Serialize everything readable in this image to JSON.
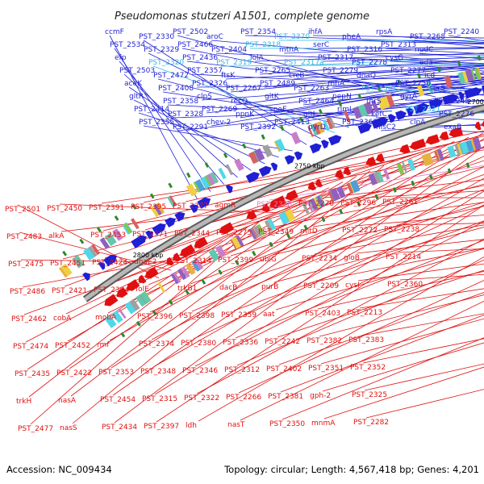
{
  "title": "Pseudomonas stutzeri A1501, complete genome",
  "footer": {
    "accession": "Accession: NC_009434",
    "summary": "Topology: circular; Length: 4,567,418 bp; Genes: 4,201"
  },
  "colors": {
    "forward": "#1f1fd6",
    "reverse": "#e01010",
    "highlight_cyan": "#33b8e6",
    "highlight_pink": "#e878c8",
    "backbone": "#8c8c8c",
    "marker": "#2a8a2a"
  },
  "scale_labels": [
    "2800 kbp",
    "2750 kbp",
    "2700 kbp",
    "2650 kbp",
    "2600 kbp",
    "2550 kbp",
    "2500 kbp",
    "2450 kbp"
  ],
  "forward_labels": [
    {
      "text": "ccmF",
      "color": "forward"
    },
    {
      "text": "PST_2534",
      "color": "forward"
    },
    {
      "text": "efp",
      "color": "forward"
    },
    {
      "text": "PST_2503",
      "color": "forward"
    },
    {
      "text": "aceK",
      "color": "forward"
    },
    {
      "text": "gltR",
      "color": "forward"
    },
    {
      "text": "PST_2414",
      "color": "forward"
    },
    {
      "text": "PST_2355",
      "color": "forward"
    },
    {
      "text": "PST_2330",
      "color": "forward"
    },
    {
      "text": "PST_2329",
      "color": "forward"
    },
    {
      "text": "PST_2320",
      "color": "highlight_cyan"
    },
    {
      "text": "PST_2472",
      "color": "forward"
    },
    {
      "text": "PST_2408",
      "color": "forward"
    },
    {
      "text": "PST_2358",
      "color": "forward"
    },
    {
      "text": "PST_2328",
      "color": "forward"
    },
    {
      "text": "PST_2291",
      "color": "forward"
    },
    {
      "text": "PST_2502",
      "color": "forward"
    },
    {
      "text": "PST_2466",
      "color": "forward"
    },
    {
      "text": "PST_2436",
      "color": "forward"
    },
    {
      "text": "PST_2357",
      "color": "forward"
    },
    {
      "text": "PST_2326",
      "color": "forward"
    },
    {
      "text": "clpS",
      "color": "forward"
    },
    {
      "text": "PST_2269",
      "color": "forward"
    },
    {
      "text": "chev-2",
      "color": "forward"
    },
    {
      "text": "aroC",
      "color": "forward"
    },
    {
      "text": "PST_2404",
      "color": "forward"
    },
    {
      "text": "PST_2319",
      "color": "highlight_cyan"
    },
    {
      "text": "ftsK",
      "color": "forward"
    },
    {
      "text": "PST_2267",
      "color": "forward"
    },
    {
      "text": "recQ",
      "color": "forward"
    },
    {
      "text": "ppnK",
      "color": "forward"
    },
    {
      "text": "PST_2392",
      "color": "forward"
    },
    {
      "text": "PST_2354",
      "color": "forward"
    },
    {
      "text": "PST_2318",
      "color": "highlight_cyan"
    },
    {
      "text": "lolA",
      "color": "forward"
    },
    {
      "text": "PST_2265",
      "color": "forward"
    },
    {
      "text": "PST_2489",
      "color": "forward"
    },
    {
      "text": "gltK",
      "color": "forward"
    },
    {
      "text": "speE",
      "color": "forward"
    },
    {
      "text": "PST_2413",
      "color": "forward"
    },
    {
      "text": "PST_2370",
      "color": "highlight_cyan"
    },
    {
      "text": "mtnA",
      "color": "forward"
    },
    {
      "text": "PST_2317a",
      "color": "highlight_cyan"
    },
    {
      "text": "crcB",
      "color": "forward"
    },
    {
      "text": "PST_2263",
      "color": "forward"
    },
    {
      "text": "PST_2464",
      "color": "forward"
    },
    {
      "text": "gltJ",
      "color": "forward"
    },
    {
      "text": "pyrD",
      "color": "forward"
    },
    {
      "text": "ihfA",
      "color": "forward"
    },
    {
      "text": "serC",
      "color": "forward"
    },
    {
      "text": "PST_2317",
      "color": "forward"
    },
    {
      "text": "PST_2279",
      "color": "forward"
    },
    {
      "text": "rnhA",
      "color": "forward"
    },
    {
      "text": "pepN",
      "color": "forward"
    },
    {
      "text": "rlmL",
      "color": "forward"
    },
    {
      "text": "PST_2362",
      "color": "forward"
    },
    {
      "text": "pheA",
      "color": "forward"
    },
    {
      "text": "PST_2316",
      "color": "forward"
    },
    {
      "text": "PST_2278",
      "color": "forward"
    },
    {
      "text": "dnaQ",
      "color": "forward"
    },
    {
      "text": "PST_2361",
      "color": "highlight_cyan"
    },
    {
      "text": "thrS",
      "color": "forward"
    },
    {
      "text": "kefC",
      "color": "forward"
    },
    {
      "text": "hisC2",
      "color": "forward"
    },
    {
      "text": "rpsA",
      "color": "forward"
    },
    {
      "text": "PST_2313",
      "color": "forward"
    },
    {
      "text": "cysG",
      "color": "forward"
    },
    {
      "text": "PST_2277",
      "color": "forward"
    },
    {
      "text": "PST_2250",
      "color": "forward"
    },
    {
      "text": "gyrA",
      "color": "forward"
    },
    {
      "text": "PST_2321",
      "color": "highlight_cyan"
    },
    {
      "text": "clpA",
      "color": "forward"
    },
    {
      "text": "PST_2268",
      "color": "forward"
    },
    {
      "text": "nudC",
      "color": "forward"
    },
    {
      "text": "eda",
      "color": "forward"
    },
    {
      "text": "icd",
      "color": "forward"
    },
    {
      "text": "serS",
      "color": "forward"
    },
    {
      "text": "PST_2245",
      "color": "forward"
    },
    {
      "text": "PST_2276",
      "color": "forward"
    },
    {
      "text": "exaB",
      "color": "forward"
    },
    {
      "text": "PST_2240",
      "color": "forward"
    }
  ],
  "reverse_labels": [
    {
      "text": "PST_2501",
      "color": "reverse"
    },
    {
      "text": "PST_2483",
      "color": "reverse"
    },
    {
      "text": "PST_2475",
      "color": "reverse"
    },
    {
      "text": "PST_2486",
      "color": "reverse"
    },
    {
      "text": "PST_2462",
      "color": "reverse"
    },
    {
      "text": "PST_2474",
      "color": "reverse"
    },
    {
      "text": "PST_2435",
      "color": "reverse"
    },
    {
      "text": "trkH",
      "color": "reverse"
    },
    {
      "text": "PST_2477",
      "color": "reverse"
    },
    {
      "text": "PST_2450",
      "color": "reverse"
    },
    {
      "text": "alkA",
      "color": "reverse"
    },
    {
      "text": "PST_2451",
      "color": "reverse"
    },
    {
      "text": "PST_2421",
      "color": "reverse"
    },
    {
      "text": "cobA",
      "color": "reverse"
    },
    {
      "text": "PST_2452",
      "color": "reverse"
    },
    {
      "text": "PST_2422",
      "color": "reverse"
    },
    {
      "text": "nasA",
      "color": "reverse"
    },
    {
      "text": "nasS",
      "color": "reverse"
    },
    {
      "text": "PST_2391",
      "color": "reverse"
    },
    {
      "text": "PST_2453",
      "color": "reverse"
    },
    {
      "text": "PST_2424",
      "color": "reverse"
    },
    {
      "text": "PST_2394",
      "color": "reverse"
    },
    {
      "text": "mobA",
      "color": "reverse"
    },
    {
      "text": "rmf",
      "color": "reverse"
    },
    {
      "text": "PST_2353",
      "color": "reverse"
    },
    {
      "text": "PST_2454",
      "color": "reverse"
    },
    {
      "text": "PST_2434",
      "color": "reverse"
    },
    {
      "text": "PST_2395",
      "color": "reverse"
    },
    {
      "text": "PST_2371",
      "color": "reverse"
    },
    {
      "text": "dnaE2",
      "color": "reverse"
    },
    {
      "text": "folE",
      "color": "reverse"
    },
    {
      "text": "PST_2396",
      "color": "reverse"
    },
    {
      "text": "PST_2374",
      "color": "reverse"
    },
    {
      "text": "PST_2348",
      "color": "reverse"
    },
    {
      "text": "PST_2315",
      "color": "reverse"
    },
    {
      "text": "PST_2397",
      "color": "reverse"
    },
    {
      "text": "PST_2377",
      "color": "reverse"
    },
    {
      "text": "PST_2344",
      "color": "reverse"
    },
    {
      "text": "PST_2314",
      "color": "reverse"
    },
    {
      "text": "trkB1",
      "color": "reverse"
    },
    {
      "text": "PST_2398",
      "color": "reverse"
    },
    {
      "text": "PST_2380",
      "color": "reverse"
    },
    {
      "text": "PST_2346",
      "color": "reverse"
    },
    {
      "text": "PST_2322",
      "color": "reverse"
    },
    {
      "text": "ldh",
      "color": "reverse"
    },
    {
      "text": "agmR",
      "color": "reverse"
    },
    {
      "text": "PST_2275",
      "color": "reverse"
    },
    {
      "text": "PST_2399",
      "color": "reverse"
    },
    {
      "text": "dacB",
      "color": "reverse"
    },
    {
      "text": "PST_2359",
      "color": "reverse"
    },
    {
      "text": "PST_2336",
      "color": "reverse"
    },
    {
      "text": "PST_2312",
      "color": "reverse"
    },
    {
      "text": "PST_2266",
      "color": "reverse"
    },
    {
      "text": "nasT",
      "color": "reverse"
    },
    {
      "text": "PST_2378",
      "color": "highlight_pink"
    },
    {
      "text": "PST_2349",
      "color": "reverse"
    },
    {
      "text": "ubiG",
      "color": "reverse"
    },
    {
      "text": "purB",
      "color": "reverse"
    },
    {
      "text": "aat",
      "color": "reverse"
    },
    {
      "text": "PST_2242",
      "color": "reverse"
    },
    {
      "text": "PST_2402",
      "color": "reverse"
    },
    {
      "text": "PST_2381",
      "color": "reverse"
    },
    {
      "text": "PST_2350",
      "color": "reverse"
    },
    {
      "text": "PST_2270",
      "color": "reverse"
    },
    {
      "text": "mltD",
      "color": "reverse"
    },
    {
      "text": "PST_2234",
      "color": "reverse"
    },
    {
      "text": "PST_2209",
      "color": "reverse"
    },
    {
      "text": "PST_2403",
      "color": "reverse"
    },
    {
      "text": "PST_2382",
      "color": "reverse"
    },
    {
      "text": "PST_2351",
      "color": "reverse"
    },
    {
      "text": "gph-2",
      "color": "reverse"
    },
    {
      "text": "mnmA",
      "color": "reverse"
    },
    {
      "text": "PST_2296",
      "color": "reverse"
    },
    {
      "text": "PST_2272",
      "color": "reverse"
    },
    {
      "text": "gloB",
      "color": "reverse"
    },
    {
      "text": "cysI",
      "color": "reverse"
    },
    {
      "text": "PST_2213",
      "color": "reverse"
    },
    {
      "text": "PST_2383",
      "color": "reverse"
    },
    {
      "text": "PST_2352",
      "color": "reverse"
    },
    {
      "text": "PST_2325",
      "color": "reverse"
    },
    {
      "text": "PST_2282",
      "color": "reverse"
    },
    {
      "text": "PST_2261",
      "color": "reverse"
    },
    {
      "text": "PST_2238",
      "color": "reverse"
    },
    {
      "text": "PST_2214",
      "color": "reverse"
    },
    {
      "text": "PST_2360",
      "color": "reverse"
    }
  ]
}
